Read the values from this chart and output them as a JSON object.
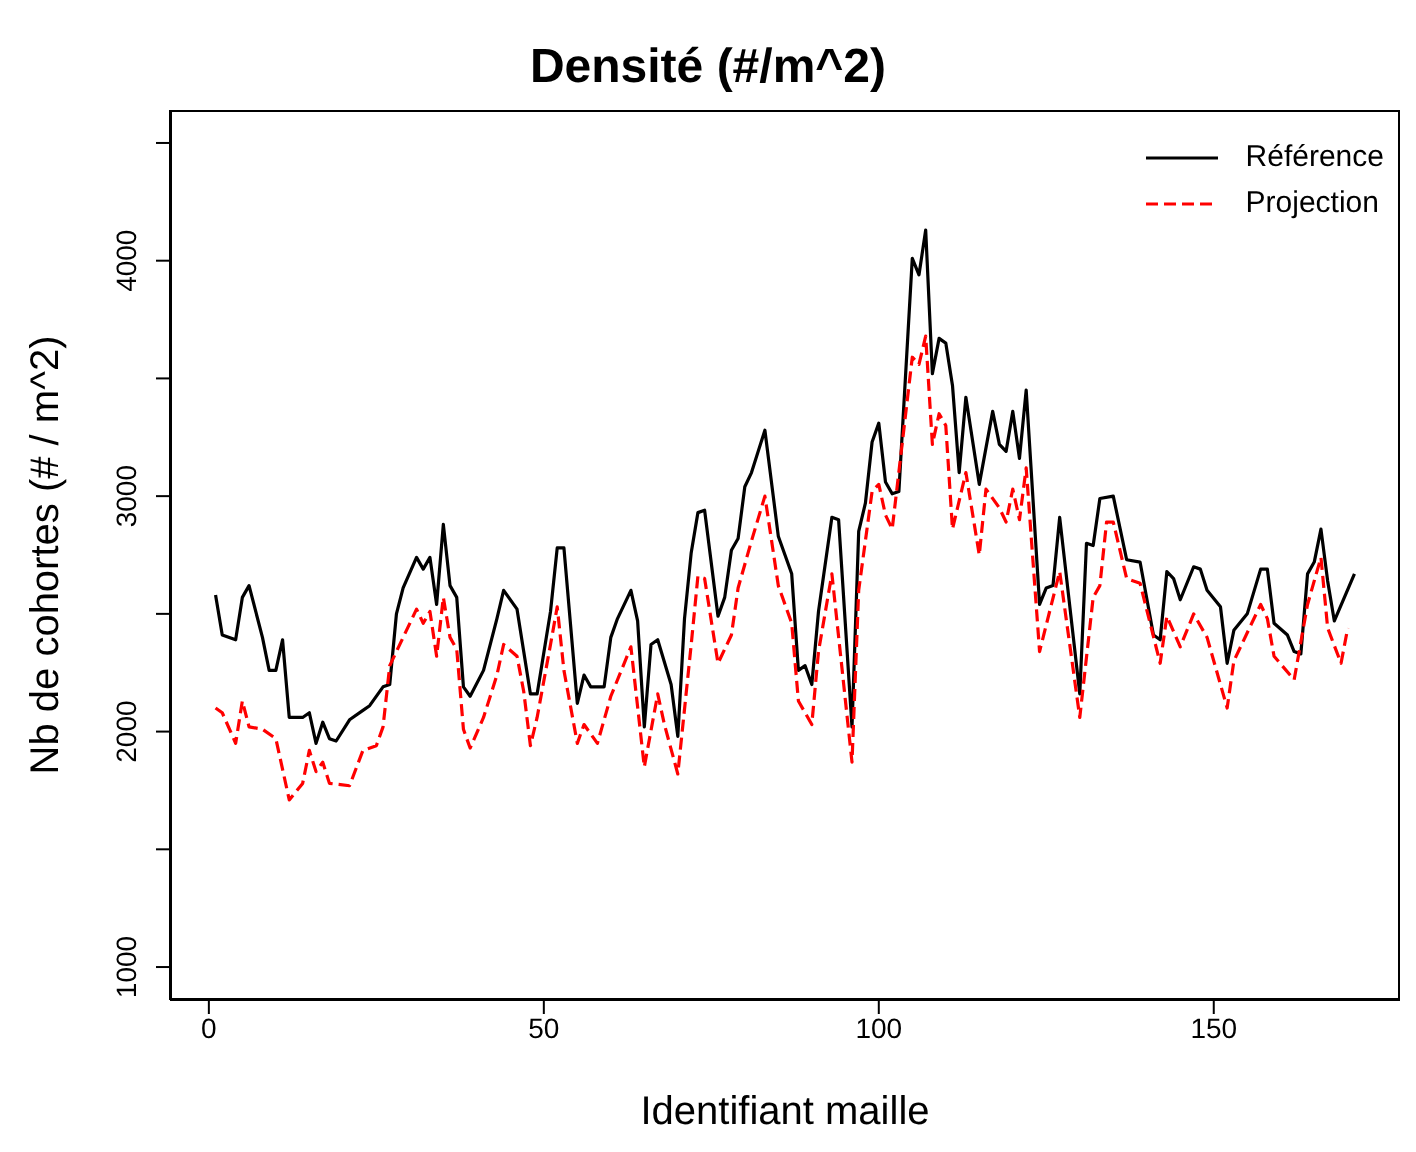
{
  "chart_data": {
    "type": "line",
    "title": "Densité (#/m^2)",
    "xlabel": "Identifiant maille",
    "ylabel": "Nb de cohortes (# / m^2)",
    "xlim": [
      -5.8,
      177.8
    ],
    "xticks": [
      0,
      50,
      100,
      150
    ],
    "ylim": [
      860,
      4640
    ],
    "yticks": [
      1000,
      {
        "value": 1500,
        "label": null
      },
      2000,
      {
        "value": 2500,
        "label": null
      },
      3000,
      {
        "value": 3500,
        "label": null
      },
      4000,
      {
        "value": 4500,
        "label": null
      }
    ],
    "legend": "top right",
    "marker": "none",
    "series": [
      {
        "name": "Référence",
        "color": "#000000",
        "line_style": "solid",
        "x": [
          1,
          2,
          4,
          5,
          6,
          8,
          9,
          10,
          11,
          12,
          14,
          15,
          16,
          17,
          18,
          19,
          21,
          23,
          24,
          26,
          27,
          28,
          29,
          31,
          32,
          33,
          34,
          35,
          36,
          37,
          38,
          39,
          41,
          43,
          44,
          46,
          47,
          48,
          49,
          51,
          52,
          53,
          55,
          56,
          57,
          59,
          60,
          61,
          63,
          64,
          65,
          66,
          67,
          69,
          70,
          71,
          72,
          73,
          74,
          76,
          77,
          78,
          79,
          80,
          81,
          83,
          85,
          87,
          88,
          89,
          90,
          91,
          93,
          94,
          96,
          97,
          98,
          99,
          100,
          101,
          102,
          103,
          105,
          106,
          107,
          108,
          109,
          110,
          111,
          112,
          113,
          115,
          117,
          118,
          119,
          120,
          121,
          122,
          124,
          125,
          126,
          127,
          130,
          131,
          132,
          133,
          135,
          137,
          139,
          141,
          142,
          143,
          144,
          145,
          147,
          148,
          149,
          151,
          152,
          153,
          155,
          157,
          158,
          159,
          161,
          162,
          163,
          164,
          165,
          166,
          167,
          168,
          171
        ],
        "values": [
          2580,
          2410,
          2390,
          2570,
          2620,
          2400,
          2260,
          2260,
          2390,
          2060,
          2060,
          2080,
          1950,
          2040,
          1970,
          1960,
          2050,
          2090,
          2110,
          2190,
          2200,
          2500,
          2610,
          2740,
          2690,
          2740,
          2540,
          2880,
          2620,
          2570,
          2190,
          2150,
          2260,
          2480,
          2600,
          2520,
          2340,
          2160,
          2160,
          2510,
          2780,
          2780,
          2120,
          2240,
          2190,
          2190,
          2400,
          2480,
          2600,
          2470,
          2020,
          2370,
          2390,
          2200,
          1980,
          2480,
          2760,
          2930,
          2940,
          2490,
          2570,
          2770,
          2820,
          3040,
          3100,
          3280,
          2830,
          2670,
          2260,
          2280,
          2200,
          2510,
          2910,
          2900,
          2020,
          2850,
          2970,
          3230,
          3310,
          3060,
          3010,
          3020,
          4010,
          3940,
          4130,
          3520,
          3670,
          3650,
          3470,
          3100,
          3420,
          3050,
          3360,
          3220,
          3190,
          3360,
          3160,
          3450,
          2540,
          2610,
          2620,
          2910,
          2160,
          2800,
          2790,
          2990,
          3000,
          2730,
          2720,
          2410,
          2390,
          2680,
          2650,
          2560,
          2700,
          2690,
          2600,
          2530,
          2290,
          2430,
          2500,
          2690,
          2690,
          2460,
          2410,
          2340,
          2330,
          2670,
          2720,
          2860,
          2640,
          2470,
          2670
        ]
      },
      {
        "name": "Projection",
        "color": "#ff0000",
        "line_style": "dashed",
        "x": [
          1,
          2,
          4,
          5,
          6,
          8,
          10,
          12,
          14,
          15,
          16,
          17,
          18,
          21,
          23,
          25,
          26,
          27,
          31,
          32,
          33,
          34,
          35,
          36,
          37,
          38,
          39,
          41,
          43,
          44,
          46,
          47,
          48,
          49,
          51,
          52,
          53,
          55,
          56,
          58,
          60,
          63,
          65,
          67,
          68,
          70,
          72,
          73,
          74,
          76,
          78,
          79,
          81,
          83,
          85,
          87,
          88,
          90,
          91,
          93,
          96,
          97,
          99,
          100,
          101,
          102,
          105,
          106,
          107,
          108,
          109,
          110,
          111,
          113,
          115,
          116,
          118,
          119,
          120,
          121,
          122,
          124,
          127,
          130,
          132,
          133,
          134,
          135,
          137,
          139,
          142,
          143,
          145,
          147,
          149,
          152,
          153,
          157,
          158,
          159,
          162,
          164,
          166,
          167,
          169,
          170
        ],
        "values": [
          2100,
          2080,
          1950,
          2130,
          2020,
          2010,
          1970,
          1710,
          1780,
          1920,
          1830,
          1870,
          1780,
          1770,
          1920,
          1940,
          2020,
          2280,
          2520,
          2460,
          2510,
          2320,
          2570,
          2400,
          2350,
          2010,
          1930,
          2060,
          2240,
          2370,
          2320,
          2170,
          1940,
          2060,
          2370,
          2530,
          2260,
          1950,
          2030,
          1950,
          2150,
          2360,
          1850,
          2160,
          2030,
          1820,
          2370,
          2660,
          2650,
          2290,
          2410,
          2610,
          2810,
          3000,
          2620,
          2460,
          2130,
          2030,
          2340,
          2670,
          1870,
          2600,
          3020,
          3050,
          2920,
          2860,
          3590,
          3560,
          3680,
          3220,
          3350,
          3300,
          2860,
          3100,
          2750,
          3030,
          2950,
          2890,
          3030,
          2900,
          3120,
          2340,
          2680,
          2060,
          2570,
          2620,
          2890,
          2890,
          2650,
          2630,
          2290,
          2490,
          2360,
          2500,
          2400,
          2100,
          2300,
          2540,
          2480,
          2320,
          2220,
          2540,
          2740,
          2440,
          2290,
          2440
        ]
      }
    ]
  }
}
